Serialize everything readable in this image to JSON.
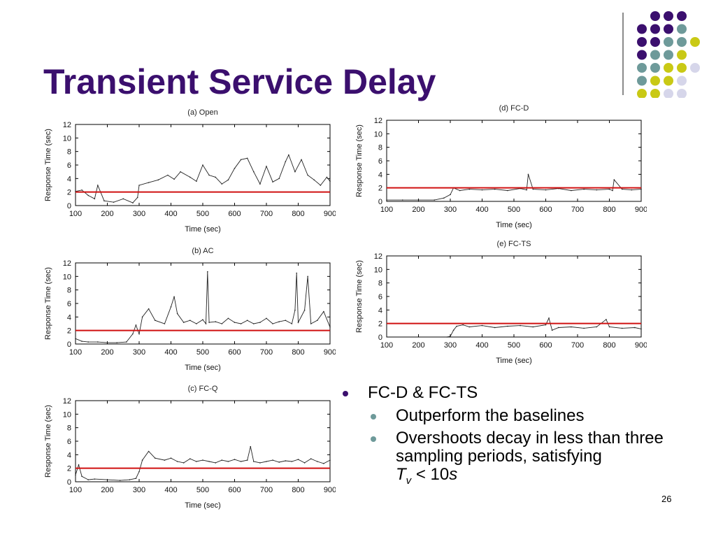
{
  "slide": {
    "title": "Transient Service Delay",
    "page_number": "26",
    "accent_colors": {
      "purple": "#3b0f6e",
      "teal": "#6e9a9a",
      "yellow": "#c9c915",
      "lavender": "#d6d6ea",
      "threshold": "#d01010"
    }
  },
  "bullets": {
    "main": "FC-D & FC-TS",
    "sub1": "Outperform the baselines",
    "sub2": "Overshoots decay in less than three sampling periods, satisfying",
    "formula_T": "T",
    "formula_sub": "v",
    "formula_rest": " < 10",
    "formula_s": "s"
  },
  "chart_data": [
    {
      "id": "a",
      "type": "line",
      "title": "(a) Open",
      "xlabel": "Time (sec)",
      "ylabel": "Response Time (sec)",
      "xlim": [
        100,
        900
      ],
      "ylim": [
        0,
        12
      ],
      "xticks": [
        100,
        200,
        300,
        400,
        500,
        600,
        700,
        800,
        900
      ],
      "yticks": [
        0,
        2,
        4,
        6,
        8,
        10,
        12
      ],
      "threshold": 2,
      "series": [
        {
          "x": [
            100,
            120,
            140,
            160,
            170,
            190,
            220,
            250,
            280,
            295,
            300,
            330,
            360,
            390,
            410,
            430,
            460,
            480,
            500,
            520,
            540,
            560,
            580,
            600,
            620,
            640,
            660,
            680,
            700,
            720,
            740,
            760,
            770,
            790,
            810,
            830,
            850,
            870,
            890,
            900
          ],
          "y": [
            2.1,
            2.3,
            1.5,
            1.0,
            3.0,
            0.7,
            0.5,
            1.0,
            0.4,
            1.2,
            3.0,
            3.4,
            3.8,
            4.5,
            3.9,
            5.0,
            4.2,
            3.6,
            6.0,
            4.5,
            4.2,
            3.2,
            3.8,
            5.5,
            6.8,
            7.0,
            5.0,
            3.2,
            5.8,
            3.5,
            4.0,
            6.5,
            7.5,
            5.0,
            6.8,
            4.5,
            3.8,
            3.0,
            4.2,
            3.6
          ]
        }
      ]
    },
    {
      "id": "b",
      "type": "line",
      "title": "(b) AC",
      "xlabel": "Time (sec)",
      "ylabel": "Response Time (sec)",
      "xlim": [
        100,
        900
      ],
      "ylim": [
        0,
        12
      ],
      "xticks": [
        100,
        200,
        300,
        400,
        500,
        600,
        700,
        800,
        900
      ],
      "yticks": [
        0,
        2,
        4,
        6,
        8,
        10,
        12
      ],
      "threshold": 2,
      "series": [
        {
          "x": [
            100,
            120,
            140,
            170,
            200,
            230,
            260,
            280,
            290,
            300,
            310,
            330,
            350,
            380,
            400,
            410,
            420,
            440,
            460,
            480,
            500,
            510,
            515,
            520,
            540,
            560,
            580,
            600,
            620,
            640,
            660,
            680,
            700,
            720,
            740,
            760,
            780,
            790,
            795,
            800,
            820,
            830,
            840,
            860,
            880,
            900
          ],
          "y": [
            0.8,
            0.4,
            0.3,
            0.3,
            0.2,
            0.2,
            0.3,
            1.5,
            2.8,
            1.5,
            4.0,
            5.2,
            3.5,
            3.0,
            5.5,
            7.0,
            4.5,
            3.2,
            3.5,
            3.0,
            3.6,
            3.0,
            10.7,
            3.2,
            3.3,
            3.0,
            3.8,
            3.2,
            3.0,
            3.5,
            3.0,
            3.2,
            3.8,
            3.0,
            3.3,
            3.5,
            3.0,
            5.0,
            10.5,
            3.2,
            5.0,
            10.0,
            3.0,
            3.5,
            4.8,
            2.5
          ]
        }
      ]
    },
    {
      "id": "c",
      "type": "line",
      "title": "(c) FC-Q",
      "xlabel": "Time (sec)",
      "ylabel": "Response Time (sec)",
      "xlim": [
        100,
        900
      ],
      "ylim": [
        0,
        12
      ],
      "xticks": [
        100,
        200,
        300,
        400,
        500,
        600,
        700,
        800,
        900
      ],
      "yticks": [
        0,
        2,
        4,
        6,
        8,
        10,
        12
      ],
      "threshold": 2,
      "series": [
        {
          "x": [
            100,
            110,
            120,
            140,
            160,
            200,
            240,
            270,
            290,
            300,
            310,
            330,
            350,
            380,
            400,
            420,
            440,
            460,
            480,
            500,
            520,
            540,
            560,
            580,
            600,
            620,
            640,
            650,
            660,
            680,
            700,
            720,
            740,
            760,
            780,
            800,
            820,
            840,
            860,
            880,
            900
          ],
          "y": [
            1.0,
            2.5,
            0.8,
            0.3,
            0.4,
            0.3,
            0.2,
            0.3,
            0.5,
            1.5,
            3.2,
            4.5,
            3.5,
            3.2,
            3.5,
            3.0,
            2.8,
            3.4,
            3.0,
            3.2,
            3.0,
            2.8,
            3.2,
            3.0,
            3.3,
            3.0,
            3.2,
            5.2,
            3.0,
            2.8,
            3.0,
            3.2,
            2.9,
            3.1,
            3.0,
            3.3,
            2.8,
            3.4,
            3.0,
            2.7,
            3.2
          ]
        }
      ]
    },
    {
      "id": "d",
      "type": "line",
      "title": "(d) FC-D",
      "xlabel": "Time (sec)",
      "ylabel": "Response Time (sec)",
      "xlim": [
        100,
        900
      ],
      "ylim": [
        0,
        12
      ],
      "xticks": [
        100,
        200,
        300,
        400,
        500,
        600,
        700,
        800,
        900
      ],
      "yticks": [
        0,
        2,
        4,
        6,
        8,
        10,
        12
      ],
      "threshold": 2,
      "series": [
        {
          "x": [
            100,
            150,
            200,
            250,
            280,
            300,
            310,
            330,
            360,
            400,
            440,
            480,
            520,
            540,
            545,
            560,
            600,
            640,
            680,
            720,
            760,
            800,
            810,
            815,
            840,
            870,
            900
          ],
          "y": [
            0.2,
            0.2,
            0.2,
            0.2,
            0.5,
            1.0,
            2.0,
            1.6,
            1.8,
            1.7,
            1.8,
            1.6,
            1.9,
            1.7,
            4.0,
            1.8,
            1.7,
            1.9,
            1.6,
            1.8,
            1.7,
            1.8,
            1.6,
            3.2,
            1.8,
            1.7,
            1.8
          ]
        }
      ]
    },
    {
      "id": "e",
      "type": "line",
      "title": "(e) FC-TS",
      "xlabel": "Time (sec)",
      "ylabel": "Response Time (sec)",
      "xlim": [
        100,
        900
      ],
      "ylim": [
        0,
        12
      ],
      "xticks": [
        100,
        200,
        300,
        400,
        500,
        600,
        700,
        800,
        900
      ],
      "yticks": [
        0,
        2,
        4,
        6,
        8,
        10,
        12
      ],
      "threshold": 2,
      "series": [
        {
          "x": [
            290,
            300,
            310,
            320,
            340,
            360,
            400,
            440,
            480,
            520,
            560,
            600,
            610,
            620,
            640,
            680,
            720,
            760,
            790,
            800,
            840,
            880,
            900
          ],
          "y": [
            0.0,
            0.1,
            1.0,
            1.6,
            1.8,
            1.5,
            1.7,
            1.4,
            1.6,
            1.7,
            1.5,
            1.8,
            2.8,
            1.0,
            1.4,
            1.5,
            1.3,
            1.5,
            2.6,
            1.5,
            1.3,
            1.4,
            1.2
          ]
        }
      ]
    }
  ]
}
